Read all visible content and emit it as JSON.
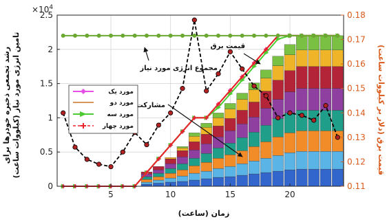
{
  "chart_data": {
    "type": "bar",
    "x": [
      1,
      2,
      3,
      4,
      5,
      6,
      7,
      8,
      9,
      10,
      11,
      12,
      13,
      14,
      15,
      16,
      17,
      18,
      19,
      20,
      21,
      22,
      23,
      24
    ],
    "xlim": [
      0.5,
      24.5
    ],
    "xticks": [
      "5",
      "10",
      "15",
      "20"
    ],
    "xtick_values": [
      5,
      10,
      15,
      20
    ],
    "xlabel": "زمان (ساعت)",
    "y_left": {
      "label_line1": "رشد تجمعی ذخیره خودرها برای",
      "label_line2": "تامین انرژی مورد نیاز (کیلووات ساعت)",
      "lim": [
        0,
        25000
      ],
      "exponent": "×10",
      "exponent_power": "4",
      "ticks": [
        "0",
        "0.5",
        "1",
        "1.5",
        "2",
        "2.5"
      ],
      "tick_values": [
        0,
        5000,
        10000,
        15000,
        20000,
        25000
      ]
    },
    "y_right": {
      "label": "قیمت برق (دلار بر کیلووات ساعت)",
      "lim": [
        0.11,
        0.18
      ],
      "ticks": [
        "0.11",
        "0.12",
        "0.13",
        "0.14",
        "0.15",
        "0.16",
        "0.17",
        "0.18"
      ],
      "tick_values": [
        0.11,
        0.12,
        0.13,
        0.14,
        0.15,
        0.16,
        0.17,
        0.18
      ]
    },
    "stack_colors": [
      "#3366cc",
      "#5ab4e5",
      "#f28c28",
      "#1f9e89",
      "#8e3fa0",
      "#b32439",
      "#f0b429",
      "#7ac143"
    ],
    "stacks": [
      {
        "x": 8,
        "values": [
          300,
          300,
          400,
          400,
          400,
          300,
          0,
          0
        ]
      },
      {
        "x": 9,
        "values": [
          450,
          450,
          500,
          500,
          500,
          500,
          0,
          0
        ]
      },
      {
        "x": 10,
        "values": [
          600,
          600,
          700,
          700,
          700,
          700,
          200,
          0
        ]
      },
      {
        "x": 11,
        "values": [
          700,
          800,
          900,
          900,
          1000,
          900,
          400,
          200
        ]
      },
      {
        "x": 12,
        "values": [
          900,
          1000,
          1100,
          1100,
          1200,
          1200,
          800,
          500
        ]
      },
      {
        "x": 13,
        "values": [
          1100,
          1100,
          1300,
          1300,
          1400,
          1400,
          1000,
          600
        ]
      },
      {
        "x": 14,
        "values": [
          1300,
          1300,
          1500,
          1500,
          1600,
          1600,
          1200,
          700
        ]
      },
      {
        "x": 15,
        "values": [
          1400,
          1500,
          1700,
          1700,
          1800,
          1800,
          1400,
          800
        ]
      },
      {
        "x": 16,
        "values": [
          1600,
          1700,
          1900,
          1900,
          2000,
          2000,
          1600,
          900
        ]
      },
      {
        "x": 17,
        "values": [
          1800,
          1900,
          2100,
          2100,
          2200,
          2200,
          1800,
          1000
        ]
      },
      {
        "x": 18,
        "values": [
          2000,
          2100,
          2400,
          2400,
          2500,
          2500,
          1900,
          1200
        ]
      },
      {
        "x": 19,
        "values": [
          2200,
          2300,
          2700,
          2700,
          2800,
          2800,
          2100,
          1400
        ]
      },
      {
        "x": 20,
        "values": [
          2400,
          2500,
          2900,
          2900,
          3100,
          3100,
          2300,
          1500
        ]
      },
      {
        "x": 21,
        "values": [
          2500,
          2600,
          3000,
          3000,
          3200,
          3200,
          2400,
          2100
        ]
      },
      {
        "x": 22,
        "values": [
          2500,
          2600,
          3000,
          3000,
          3200,
          3200,
          2400,
          2100
        ]
      },
      {
        "x": 23,
        "values": [
          2500,
          2600,
          3000,
          3000,
          3200,
          3200,
          2400,
          2100
        ]
      },
      {
        "x": 24,
        "values": [
          2500,
          2600,
          3000,
          3000,
          3200,
          3200,
          2400,
          2100
        ]
      }
    ],
    "series": [
      {
        "name": "مورد یک",
        "axis": "left",
        "color": "#e64ee6",
        "marker": "diamond",
        "x": [
          1,
          2,
          3,
          4,
          5,
          6,
          7,
          8,
          9,
          10,
          11,
          12,
          13,
          14,
          15,
          16,
          17,
          18,
          19,
          20,
          21,
          22,
          23,
          24
        ],
        "y": [
          0,
          0,
          0,
          0,
          0,
          0,
          0,
          2000,
          4000,
          6000,
          8000,
          10000,
          10000,
          12000,
          14000,
          16000,
          18000,
          20000,
          22000,
          22000,
          22000,
          22000,
          22000,
          22000
        ]
      },
      {
        "name": "مورد دو",
        "axis": "left",
        "color": "#c8741f",
        "marker": "none",
        "x": [
          1,
          2,
          3,
          4,
          5,
          6,
          7,
          8,
          9,
          10,
          11,
          12,
          13,
          14,
          15,
          16,
          17,
          18,
          19,
          20,
          21,
          22,
          23,
          24
        ],
        "y": [
          0,
          0,
          0,
          0,
          0,
          0,
          0,
          2000,
          4000,
          6000,
          8000,
          10000,
          10000,
          12000,
          14000,
          16000,
          18000,
          20000,
          22000,
          22000,
          22000,
          22000,
          22000,
          22000
        ]
      },
      {
        "name": "مورد سه",
        "axis": "left",
        "color": "#4ccc32",
        "marker": "triangle",
        "x": [
          1,
          2,
          3,
          4,
          5,
          6,
          7,
          8,
          9,
          10,
          11,
          12,
          13,
          14,
          15,
          16,
          17,
          18,
          19,
          20,
          21,
          22,
          23,
          24
        ],
        "y": [
          0,
          0,
          0,
          0,
          0,
          0,
          0,
          2000,
          4000,
          6000,
          8000,
          10000,
          10000,
          11500,
          13500,
          15500,
          17500,
          19500,
          21500,
          22000,
          22000,
          22000,
          22000,
          22000
        ]
      },
      {
        "name": "مورد چهار",
        "axis": "left",
        "color": "#e8232a",
        "marker": "plus",
        "x": [
          1,
          2,
          3,
          4,
          5,
          6,
          7,
          8,
          9,
          10,
          11,
          12,
          13,
          14,
          15,
          16,
          17,
          18,
          19,
          20,
          21,
          22,
          23,
          24
        ],
        "y": [
          0,
          0,
          0,
          0,
          0,
          0,
          0,
          2000,
          4000,
          6000,
          8000,
          10000,
          10000,
          12000,
          14000,
          16000,
          18000,
          20000,
          22000,
          22000,
          22000,
          22000,
          22000,
          22000
        ]
      },
      {
        "name": "مجموع انرژی مورد نیاز",
        "axis": "left",
        "color": "#6aa832",
        "marker": "circle",
        "x": [
          1,
          2,
          3,
          4,
          5,
          6,
          7,
          8,
          9,
          10,
          11,
          12,
          13,
          14,
          15,
          16,
          17,
          18,
          19,
          20,
          21,
          22,
          23,
          24
        ],
        "y": [
          22000,
          22000,
          22000,
          22000,
          22000,
          22000,
          22000,
          22000,
          22000,
          22000,
          22000,
          22000,
          22000,
          22000,
          22000,
          22000,
          22000,
          22000,
          22000,
          22000,
          22000,
          22000,
          22000,
          22000
        ]
      },
      {
        "name": "قیمت برق",
        "axis": "right",
        "color": "#000000",
        "marker": "circle-red",
        "dashed": true,
        "x": [
          1,
          2,
          3,
          4,
          5,
          6,
          7,
          8,
          9,
          10,
          11,
          12,
          13,
          14,
          15,
          16,
          17,
          18,
          19,
          20,
          21,
          22,
          23,
          24
        ],
        "y": [
          0.14,
          0.126,
          0.121,
          0.119,
          0.118,
          0.124,
          0.132,
          0.127,
          0.135,
          0.14,
          0.15,
          0.178,
          0.149,
          0.156,
          0.165,
          0.158,
          0.151,
          0.147,
          0.138,
          0.14,
          0.139,
          0.137,
          0.143,
          0.13
        ]
      }
    ],
    "legend": {
      "placement": "center-left",
      "entries": [
        "مورد یک",
        "مورد دو",
        "مورد سه",
        "مورد چهار"
      ]
    },
    "annotations": [
      {
        "text": "مجموع انرژی مورد نیاز",
        "target": "total-energy-line"
      },
      {
        "text": "قیمت برق",
        "target": "price-line"
      },
      {
        "text": "مشارکت",
        "target": "stacked-bars"
      }
    ],
    "grid": true
  }
}
